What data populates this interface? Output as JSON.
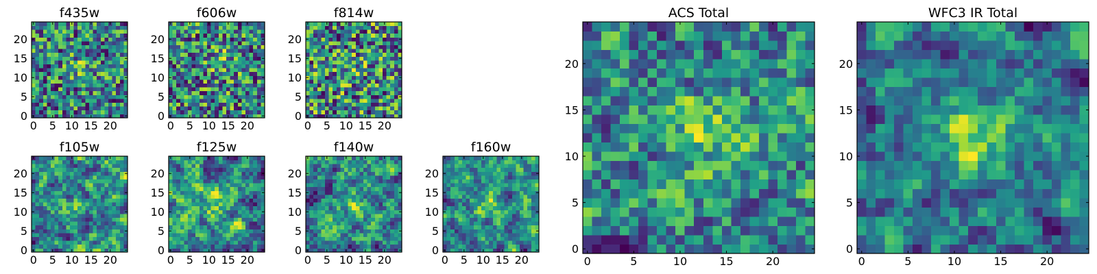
{
  "figure": {
    "panel_titles": [
      "f435w",
      "f606w",
      "f814w",
      "f105w",
      "f125w",
      "f140w",
      "f160w",
      "ACS Total",
      "WFC3 IR Total"
    ]
  },
  "chart_data": [
    {
      "type": "heatmap",
      "title": "f435w",
      "grid_size": 25,
      "xlim": [
        -0.5,
        24.5
      ],
      "ylim": [
        -0.5,
        24.5
      ],
      "xticks": [
        0,
        5,
        10,
        15,
        20
      ],
      "yticks": [
        0,
        5,
        10,
        15,
        20
      ],
      "colormap": "viridis",
      "origin": "lower",
      "smoothness": 0,
      "peak": [
        13,
        13
      ],
      "peak_strength": 0.22,
      "seed": 11
    },
    {
      "type": "heatmap",
      "title": "f606w",
      "grid_size": 25,
      "xlim": [
        -0.5,
        24.5
      ],
      "ylim": [
        -0.5,
        24.5
      ],
      "xticks": [
        0,
        5,
        10,
        15,
        20
      ],
      "yticks": [
        0,
        5,
        10,
        15,
        20
      ],
      "colormap": "viridis",
      "origin": "lower",
      "smoothness": 0,
      "peak": [
        13,
        14
      ],
      "peak_strength": 0.2,
      "seed": 23
    },
    {
      "type": "heatmap",
      "title": "f814w",
      "grid_size": 25,
      "xlim": [
        -0.5,
        24.5
      ],
      "ylim": [
        -0.5,
        24.5
      ],
      "xticks": [
        0,
        5,
        10,
        15,
        20
      ],
      "yticks": [
        0,
        5,
        10,
        15,
        20
      ],
      "colormap": "viridis",
      "origin": "lower",
      "smoothness": 0,
      "peak": [
        12,
        12
      ],
      "peak_strength": 0.1,
      "seed": 37
    },
    {
      "type": "heatmap",
      "title": "f105w",
      "grid_size": 25,
      "xlim": [
        -0.5,
        24.5
      ],
      "ylim": [
        -0.5,
        24.5
      ],
      "xticks": [
        0,
        5,
        10,
        15,
        20
      ],
      "yticks": [
        0,
        5,
        10,
        15,
        20
      ],
      "colormap": "viridis",
      "origin": "lower",
      "smoothness": 2,
      "peak": [
        11,
        12
      ],
      "peak_strength": 0.1,
      "seed": 41
    },
    {
      "type": "heatmap",
      "title": "f125w",
      "grid_size": 25,
      "xlim": [
        -0.5,
        24.5
      ],
      "ylim": [
        -0.5,
        24.5
      ],
      "xticks": [
        0,
        5,
        10,
        15,
        20
      ],
      "yticks": [
        0,
        5,
        10,
        15,
        20
      ],
      "colormap": "viridis",
      "origin": "lower",
      "smoothness": 2,
      "peak": [
        12,
        12
      ],
      "peak_strength": 0.15,
      "seed": 53
    },
    {
      "type": "heatmap",
      "title": "f140w",
      "grid_size": 25,
      "xlim": [
        -0.5,
        24.5
      ],
      "ylim": [
        -0.5,
        24.5
      ],
      "xticks": [
        0,
        5,
        10,
        15,
        20
      ],
      "yticks": [
        0,
        5,
        10,
        15,
        20
      ],
      "colormap": "viridis",
      "origin": "lower",
      "smoothness": 2,
      "peak": [
        11,
        12
      ],
      "peak_strength": 0.12,
      "seed": 67
    },
    {
      "type": "heatmap",
      "title": "f160w",
      "grid_size": 25,
      "xlim": [
        -0.5,
        24.5
      ],
      "ylim": [
        -0.5,
        24.5
      ],
      "xticks": [
        0,
        5,
        10,
        15,
        20
      ],
      "yticks": [
        0,
        5,
        10,
        15,
        20
      ],
      "colormap": "viridis",
      "origin": "lower",
      "smoothness": 2,
      "peak": [
        11,
        12
      ],
      "peak_strength": 0.2,
      "seed": 79
    },
    {
      "type": "heatmap",
      "title": "ACS Total",
      "grid_size": 25,
      "xlim": [
        -0.5,
        24.5
      ],
      "ylim": [
        -0.5,
        24.5
      ],
      "xticks": [
        0,
        5,
        10,
        15,
        20
      ],
      "yticks": [
        0,
        5,
        10,
        15,
        20
      ],
      "colormap": "viridis",
      "origin": "lower",
      "smoothness": 1,
      "peak": [
        13,
        13
      ],
      "peak_strength": 0.3,
      "seed": 97
    },
    {
      "type": "heatmap",
      "title": "WFC3 IR Total",
      "grid_size": 25,
      "xlim": [
        -0.5,
        24.5
      ],
      "ylim": [
        -0.5,
        24.5
      ],
      "xticks": [
        0,
        5,
        10,
        15,
        20
      ],
      "yticks": [
        0,
        5,
        10,
        15,
        20
      ],
      "colormap": "viridis",
      "origin": "lower",
      "smoothness": 2,
      "peak": [
        12,
        12
      ],
      "peak_strength": 0.3,
      "seed": 113
    }
  ]
}
